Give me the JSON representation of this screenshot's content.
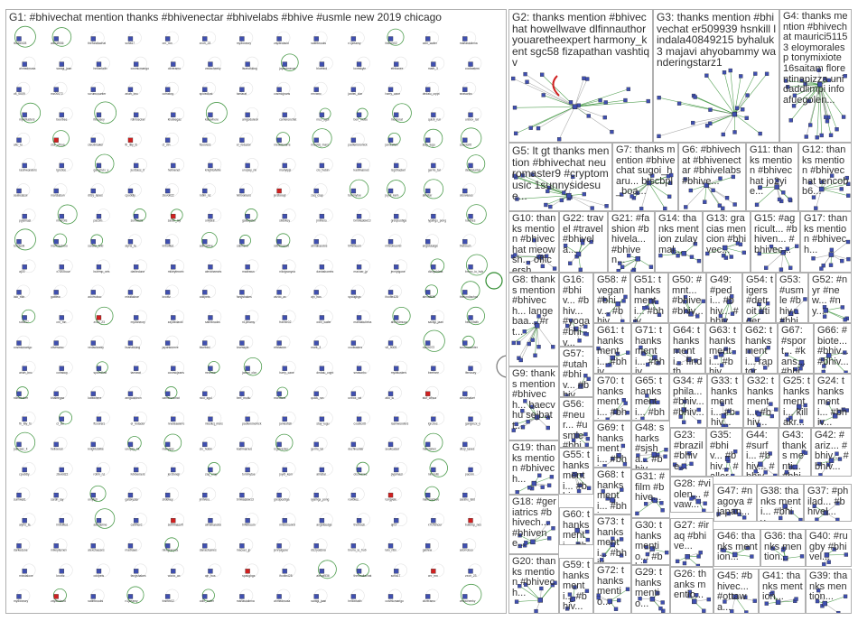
{
  "colors": {
    "border": "#b0b0b0",
    "label": "#303030",
    "edge_green": "#2e8b2e",
    "edge_gray": "#9a9a9a",
    "node_blue": "#3f4fb0",
    "node_red": "#d02020"
  },
  "groups": [
    {
      "id": "G1",
      "label": "G1: #bhivechat mention thanks #bhivenectar #bhivelabs #bhive #usmle new 2019 chicago"
    },
    {
      "id": "G2",
      "label": "G2: thanks mention #bhivechat howellwave dlfinnauthor youaretheexpert harmony_kent sgc58 fizapathan vashtiqv"
    },
    {
      "id": "G3",
      "label": "G3: thanks mention #bhivechat er509939 hsnkill lindala40849215 byhaluk3 majavi ahyobammy wanderingstarz1"
    },
    {
      "id": "G4",
      "label": "G4: thanks mention #bhivechat maurici51153 eloymoralesp tonymixiote 16saitam florentinapizza unidaddlimpi infoafuegolen..."
    },
    {
      "id": "G5",
      "label": "G5: lt gt thanks mention #bhivechat neuromaster9 #cryptomusic 1sunnysidesue..."
    },
    {
      "id": "G7",
      "label": "G7: thanks mention #bhivechat sugoi_haru... btscbpl_boa..."
    },
    {
      "id": "G6",
      "label": "G6: #bhivechat #bhivenectar #bhivelabs #bhive..."
    },
    {
      "id": "G11",
      "label": "G11: thanks mention #bhivechat jo2yie..."
    },
    {
      "id": "G12",
      "label": "G12: thanks mention #bhivechat tencobb6..."
    },
    {
      "id": "G10",
      "label": "G10: thanks mention #bhivechat meowsh... officersh..."
    },
    {
      "id": "G22",
      "label": "G22: travel #travel #bhivela..."
    },
    {
      "id": "G21",
      "label": "G21: #fashion #bhivela... #bhiven..."
    },
    {
      "id": "G14",
      "label": "G14: thanks mention zulaymal..."
    },
    {
      "id": "G13",
      "label": "G13: gracias mencion #bhivec..."
    },
    {
      "id": "G15",
      "label": "G15: #agricult... #bhiven... #bhivec..."
    },
    {
      "id": "G17",
      "label": "G17: thanks mention #bhivech..."
    },
    {
      "id": "G8",
      "label": "G8: thanks mention #bhivech... langebaa... #rt..."
    },
    {
      "id": "G16",
      "label": "G16: #bhiv... #bhiv... #yoga #bhiv..."
    },
    {
      "id": "G58",
      "label": "G58: #vegan #bhiv... #bhiv..."
    },
    {
      "id": "G51",
      "label": "G51: thanks menti... #bhiv..."
    },
    {
      "id": "G50",
      "label": "G50: #mnt... #bhive #bhiv..."
    },
    {
      "id": "G49",
      "label": "G49: #pedi... #bhiv... #bhiv..."
    },
    {
      "id": "G54",
      "label": "G54: tigers #detroit #tiger..."
    },
    {
      "id": "G53",
      "label": "G53: #usmle #bhiv... #bhiv..."
    },
    {
      "id": "G52",
      "label": "G52: #nyr #new... #ny..."
    },
    {
      "id": "G57",
      "label": "G57: #utah #bhiv... #bhiv..."
    },
    {
      "id": "G61",
      "label": "G61: thanks menti... #bhiv..."
    },
    {
      "id": "G71",
      "label": "G71: thanks menti... #bhiv..."
    },
    {
      "id": "G64",
      "label": "G64: thanks menti... findth..."
    },
    {
      "id": "G63",
      "label": "G63: thanks menti... #bhiv..."
    },
    {
      "id": "G62",
      "label": "G62: thanks menti... raptor..."
    },
    {
      "id": "G67",
      "label": "G67: #sport... #kans... #bhiv..."
    },
    {
      "id": "G66",
      "label": "G66: #biote... #bhiv... #bhiv..."
    },
    {
      "id": "G9",
      "label": "G9: thanks mention #bhivech... baecvhu sejbatt..."
    },
    {
      "id": "G70",
      "label": "G70: thanks menti... #bhiv..."
    },
    {
      "id": "G65",
      "label": "G65: thanks menti... #bhiv..."
    },
    {
      "id": "G34",
      "label": "G34: #phila... #bhiv... #bhiv..."
    },
    {
      "id": "G33",
      "label": "G33: thanks menti... #bhiv..."
    },
    {
      "id": "G32",
      "label": "G32: thanks menti... #bhiv..."
    },
    {
      "id": "G25",
      "label": "G25: thanks menti... killakr..."
    },
    {
      "id": "G24",
      "label": "G24: thanks menti... #bhiv..."
    },
    {
      "id": "G56",
      "label": "G56: #neur... #usmle #bhiv..."
    },
    {
      "id": "G69",
      "label": "G69: thanks menti... #bhiv..."
    },
    {
      "id": "G48",
      "label": "G48: sharks #sjsha... #bhiv..."
    },
    {
      "id": "G23",
      "label": "G23: #brazil #bhive..."
    },
    {
      "id": "G35",
      "label": "G35: #bhiv... #bhiv... #aller..."
    },
    {
      "id": "G44",
      "label": "G44: #surfi... #bhiv... #bhiv..."
    },
    {
      "id": "G43",
      "label": "G43: thanks menti... #bhiv..."
    },
    {
      "id": "G42",
      "label": "G42: #ariz... #bhiv... #bhiv..."
    },
    {
      "id": "G19",
      "label": "G19: thanks mention #bhivech..."
    },
    {
      "id": "G55",
      "label": "G55: thanks menti... #bhiv..."
    },
    {
      "id": "G68",
      "label": "G68: thanks menti... #bhiv..."
    },
    {
      "id": "G31",
      "label": "G31: #film #bhive..."
    },
    {
      "id": "G28",
      "label": "G28: #violen... #vaw..."
    },
    {
      "id": "G47",
      "label": "G47: #nagoya #japan..."
    },
    {
      "id": "G38",
      "label": "G38: thanks menti... #bhiv..."
    },
    {
      "id": "G37",
      "label": "G37: #philad... #bhivel..."
    },
    {
      "id": "G18",
      "label": "G18: #geriatrics #bhivech... #bhivene..."
    },
    {
      "id": "G60",
      "label": "G60: thanks menti... #bhiv..."
    },
    {
      "id": "G73",
      "label": "G73: thanks menti... #bhiv..."
    },
    {
      "id": "G30",
      "label": "G30: thanks mentio... #bhive..."
    },
    {
      "id": "G27",
      "label": "G27: #iraq #bhive..."
    },
    {
      "id": "G46",
      "label": "G46: thanks mention..."
    },
    {
      "id": "G36",
      "label": "G36: thanks mention..."
    },
    {
      "id": "G40",
      "label": "G40: #rugby #bhivel..."
    },
    {
      "id": "G20",
      "label": "G20: thanks mention #bhivech..."
    },
    {
      "id": "G59",
      "label": "G59: thanks menti... #bhiv..."
    },
    {
      "id": "G72",
      "label": "G72: thanks mentio..."
    },
    {
      "id": "G29",
      "label": "G29: thanks mentio..."
    },
    {
      "id": "G26",
      "label": "G26: thanks mentio..."
    },
    {
      "id": "G45",
      "label": "G45: #bhivec... #ottawa..."
    },
    {
      "id": "G41",
      "label": "G41: thanks mention..."
    },
    {
      "id": "G39",
      "label": "G39: thanks mention..."
    }
  ],
  "g1_node_labels": [
    "ifootie428",
    "alexaf536",
    "thefundiachat",
    "sofia17",
    "cnr_mn",
    "zxon_23",
    "mydonecry",
    "zaydedavid",
    "satinbrooks",
    "n1jzeamy",
    "framer02",
    "odin_wafer",
    "mariastutinna",
    "ahmedmusa",
    "saragi_jaan",
    "hellonfaith",
    "cosmicmango",
    "oliveramo",
    "vedacheeky",
    "lisaruthking",
    "jayantmerve",
    "bluebird",
    "loveskyle",
    "ethbanee",
    "mark_3",
    "coolwaters",
    "v8_0009",
    "mz00072",
    "scrumcounter",
    "ariah_bnc",
    "cofraboy",
    "spicedlust",
    "tamarat",
    "cosmicjeans",
    "mrvcmc",
    "jaxbel_clar",
    "harry_cane",
    "dedalu_crypt",
    "seasonbc",
    "mykitlusters",
    "beerbee",
    "ifenusey",
    "rdimcecker",
    "khaleegaz",
    "katswhere",
    "amgodoleon",
    "cameronchat",
    "nico_sgul",
    "beri_mutlu",
    "mordorat",
    "quick_run",
    "unbox_rat",
    "alto_lu",
    "stuf_ofhoa",
    "cleudmaker",
    "fb_iBy_fs",
    "ct_stn",
    "ftsoursrs",
    "el_redador",
    "nreddawarre",
    "misslizj_mars",
    "padlemmonick",
    "jamesfish",
    "stay_lugu",
    "coastcritt",
    "rasinwonders",
    "lgrcdos",
    "gangmzx_y",
    "justcasc_it",
    "helloenot",
    "knightofvibe",
    "unopsy_nk",
    "manylpjs",
    "clo_hobin",
    "kadimarnus",
    "rzgstracker",
    "gerrio_tal",
    "dezhivuntar",
    "seakcalsoi",
    "marclabon",
    "ditzy_lanes",
    "cpuddly",
    "ztevoil22",
    "robin_nz",
    "lvbloomers",
    "jerstonejr",
    "zaq_crap",
    "tommytoe",
    "joydi_kem",
    "alinstar",
    "olsovanes",
    "pyjamasi",
    "ninxrolls",
    "pacom",
    "sumwell1",
    "sarah_lay",
    "onlytetr",
    "galaxyster",
    "slidekey",
    "jmilvero",
    "bmwaskiw13",
    "greuponfiga",
    "iyjaingx_pong",
    "rowbies",
    "tongyelk",
    "marfosebroo",
    "sarahx_feld",
    "alyns_fa",
    "imbuffed",
    "adinaeline",
    "cabinerd",
    "sethimasoft",
    "atmalrandos",
    "trifleboom",
    "mitsomonrsi",
    "angeldodge",
    "thetouch",
    "aj03",
    "x7l2f2hour",
    "bulemp_nes",
    "darkedone",
    "mikeyfernex",
    "alexcheeses",
    "madrawn",
    "nikxgranyca",
    "danashomes",
    "macuer_jp",
    "jennylgone",
    "dizzyoldma",
    "bruno_io_hub",
    "lalo_ritin",
    "gablew",
    "adorroboo",
    "misslalove",
    "kxoxlz",
    "oddpets",
    "fangshakes",
    "wizoo_ax",
    "ajn_bos",
    "spaughgs"
  ]
}
